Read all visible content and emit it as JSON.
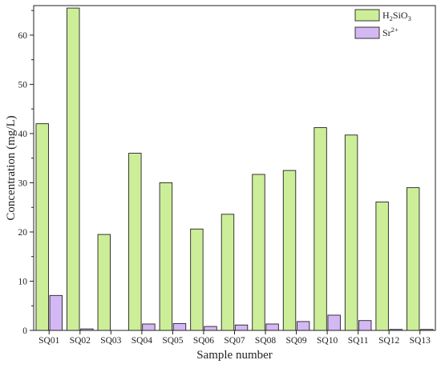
{
  "chart_data": {
    "type": "bar",
    "xlabel": "Sample number",
    "ylabel": "Concentration (mg/L)",
    "ylim": [
      0,
      66
    ],
    "yticks": [
      0,
      10,
      20,
      30,
      40,
      50,
      60
    ],
    "grid": false,
    "legend_position": "top-right",
    "categories": [
      "SQ01",
      "SQ02",
      "SQ03",
      "SQ04",
      "SQ05",
      "SQ06",
      "SQ07",
      "SQ08",
      "SQ09",
      "SQ10",
      "SQ11",
      "SQ12",
      "SQ13"
    ],
    "series": [
      {
        "name": "H2SiO3",
        "legend_label": {
          "base": "H",
          "sub1": "2",
          "mid": "SiO",
          "sub2": "3"
        },
        "color": "#ccee99",
        "values": [
          42.0,
          65.5,
          19.5,
          36.0,
          30.0,
          20.6,
          23.6,
          31.7,
          32.5,
          41.2,
          39.7,
          26.1,
          29.0
        ]
      },
      {
        "name": "Sr2+",
        "legend_label": {
          "base": "Sr",
          "sup": "2+"
        },
        "color": "#d4b8f4",
        "values": [
          7.1,
          0.3,
          0.0,
          1.3,
          1.4,
          0.8,
          1.1,
          1.3,
          1.8,
          3.1,
          2.0,
          0.2,
          0.2
        ]
      }
    ]
  }
}
